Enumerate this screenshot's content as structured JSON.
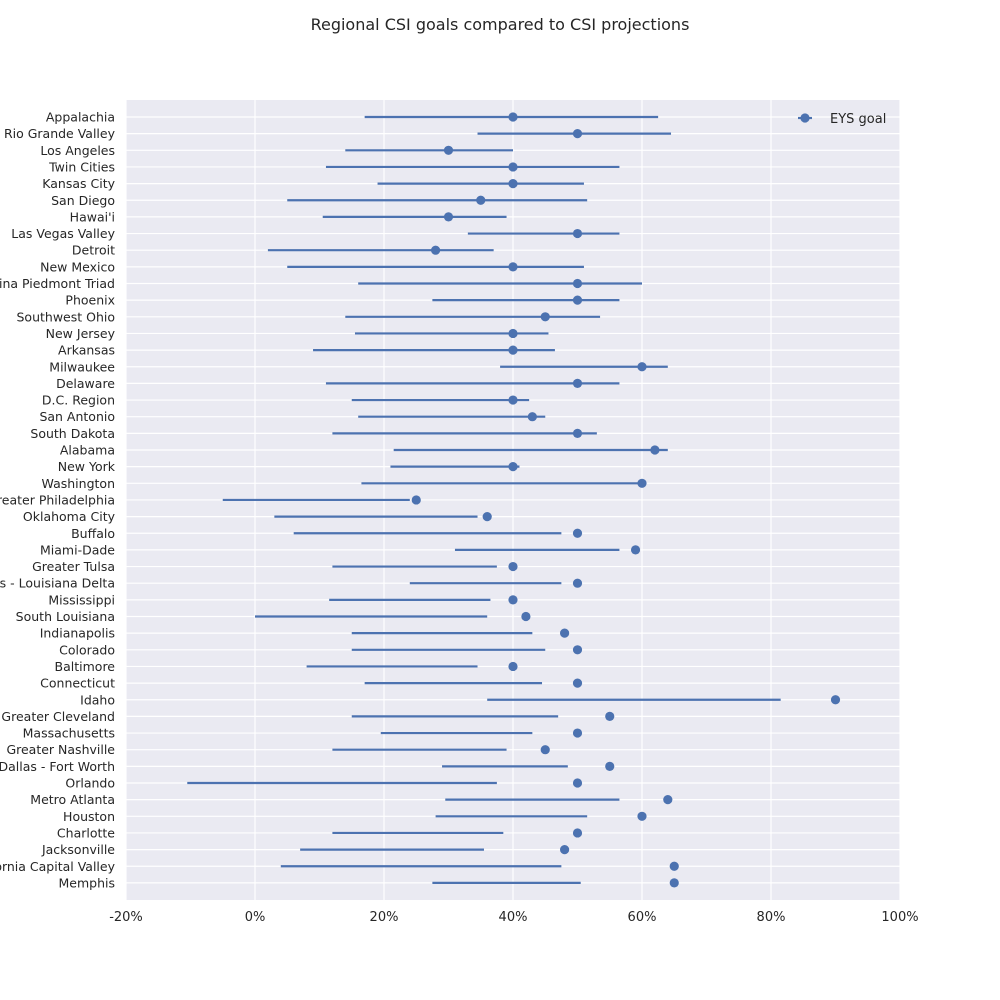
{
  "colors": {
    "plot_background": "#eaeaf2",
    "grid": "#ffffff",
    "series": "#4c72b0",
    "text": "#262626"
  },
  "chart_data": {
    "type": "scatter",
    "title": "Regional CSI goals compared to CSI projections",
    "xlabel": "",
    "ylabel": "",
    "xlim": [
      -20,
      100
    ],
    "x_unit": "%",
    "x_ticks": [
      -20,
      0,
      20,
      40,
      60,
      80,
      100
    ],
    "x_tick_labels": [
      "-20%",
      "0%",
      "20%",
      "40%",
      "60%",
      "80%",
      "100%"
    ],
    "grid": true,
    "legend": {
      "placement": "top-right",
      "entries": [
        "EYS goal"
      ]
    },
    "categories": [
      "Appalachia",
      "Rio Grande Valley",
      "Los Angeles",
      "Twin Cities",
      "Kansas City",
      "San Diego",
      "Hawai'i",
      "Las Vegas Valley",
      "Detroit",
      "New Mexico",
      "North Carolina Piedmont Triad",
      "Phoenix",
      "Southwest Ohio",
      "New Jersey",
      "Arkansas",
      "Milwaukee",
      "Delaware",
      "D.C. Region",
      "San Antonio",
      "South Dakota",
      "Alabama",
      "New York",
      "Washington",
      "Greater Philadelphia",
      "Oklahoma City",
      "Buffalo",
      "Miami-Dade",
      "Greater Tulsa",
      "Memphis - Louisiana Delta",
      "Mississippi",
      "South Louisiana",
      "Indianapolis",
      "Colorado",
      "Baltimore",
      "Connecticut",
      "Idaho",
      "Greater Cleveland",
      "Massachusetts",
      "Greater Nashville",
      "Dallas - Fort Worth",
      "Orlando",
      "Metro Atlanta",
      "Houston",
      "Charlotte",
      "Jacksonville",
      "California Capital Valley",
      "Memphis"
    ],
    "series": [
      {
        "name": "EYS goal",
        "marker": "dot",
        "values": [
          40,
          50,
          30,
          40,
          40,
          35,
          30,
          50,
          28,
          40,
          50,
          50,
          45,
          40,
          40,
          60,
          50,
          40,
          43,
          50,
          62,
          40,
          60,
          25,
          36,
          50,
          59,
          40,
          50,
          40,
          42,
          48,
          50,
          40,
          50,
          90,
          55,
          50,
          45,
          55,
          50,
          64,
          60,
          50,
          48,
          65,
          65
        ]
      },
      {
        "name": "",
        "type": "range",
        "low": [
          17,
          34.5,
          14,
          11,
          19,
          5,
          10.5,
          33,
          2,
          5,
          16,
          27.5,
          14,
          15.5,
          9,
          38,
          11,
          15,
          16,
          12,
          21.5,
          21,
          16.5,
          -5,
          3,
          6,
          31,
          12,
          24,
          11.5,
          0,
          15,
          15,
          8,
          17,
          36,
          15,
          19.5,
          12,
          29,
          -10.5,
          29.5,
          28,
          12,
          7,
          4,
          27.5
        ],
        "high": [
          62.5,
          64.5,
          40,
          56.5,
          51,
          51.5,
          39,
          56.5,
          37,
          51,
          60,
          56.5,
          53.5,
          45.5,
          46.5,
          64,
          56.5,
          42.5,
          45,
          53,
          64,
          41,
          60,
          24,
          34.5,
          47.5,
          56.5,
          37.5,
          47.5,
          36.5,
          36,
          43,
          45,
          34.5,
          44.5,
          81.5,
          47,
          43,
          39,
          48.5,
          37.5,
          56.5,
          51.5,
          38.5,
          35.5,
          47.5,
          50.5
        ]
      }
    ]
  }
}
